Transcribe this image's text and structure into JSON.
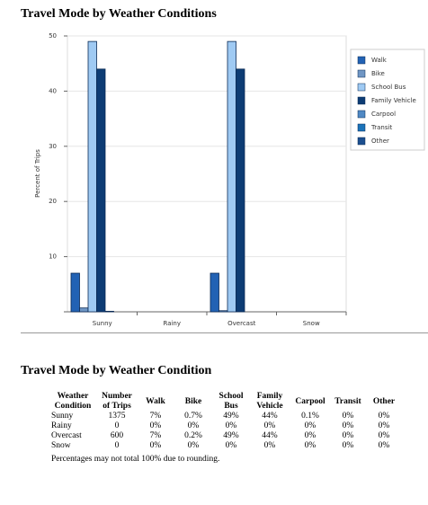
{
  "chart_data": {
    "type": "bar",
    "title": "Travel Mode by Weather Conditions",
    "y_label": "Percent of Trips",
    "categories": [
      "Sunny",
      "Rainy",
      "Overcast",
      "Snow"
    ],
    "series": [
      {
        "name": "Walk",
        "color": "#2262b4",
        "values": [
          7,
          0,
          7,
          0
        ]
      },
      {
        "name": "Bike",
        "color": "#6f96c4",
        "values": [
          0.7,
          0,
          0.2,
          0
        ]
      },
      {
        "name": "School Bus",
        "color": "#9fcaf3",
        "values": [
          49,
          0,
          49,
          0
        ]
      },
      {
        "name": "Family Vehicle",
        "color": "#0d3c74",
        "values": [
          44,
          0,
          44,
          0
        ]
      },
      {
        "name": "Carpool",
        "color": "#5089c4",
        "values": [
          0.1,
          0,
          0,
          0
        ]
      },
      {
        "name": "Transit",
        "color": "#1b73b9",
        "values": [
          0,
          0,
          0,
          0
        ]
      },
      {
        "name": "Other",
        "color": "#1c4f8f",
        "values": [
          0,
          0,
          0,
          0
        ]
      }
    ],
    "ylim": [
      0,
      50
    ],
    "yticks": [
      10,
      20,
      30,
      40,
      50
    ],
    "grid": true,
    "legend": "right"
  },
  "table": {
    "title": "Travel Mode by Weather Condition",
    "header": [
      "Weather Condition",
      "Number of Trips",
      "Walk",
      "Bike",
      "School Bus",
      "Family Vehicle",
      "Carpool",
      "Transit",
      "Other"
    ],
    "rows": [
      [
        "Sunny",
        "1375",
        "7%",
        "0.7%",
        "49%",
        "44%",
        "0.1%",
        "0%",
        "0%"
      ],
      [
        "Rainy",
        "0",
        "0%",
        "0%",
        "0%",
        "0%",
        "0%",
        "0%",
        "0%"
      ],
      [
        "Overcast",
        "600",
        "7%",
        "0.2%",
        "49%",
        "44%",
        "0%",
        "0%",
        "0%"
      ],
      [
        "Snow",
        "0",
        "0%",
        "0%",
        "0%",
        "0%",
        "0%",
        "0%",
        "0%"
      ]
    ],
    "note": "Percentages may not total 100% due to rounding."
  }
}
